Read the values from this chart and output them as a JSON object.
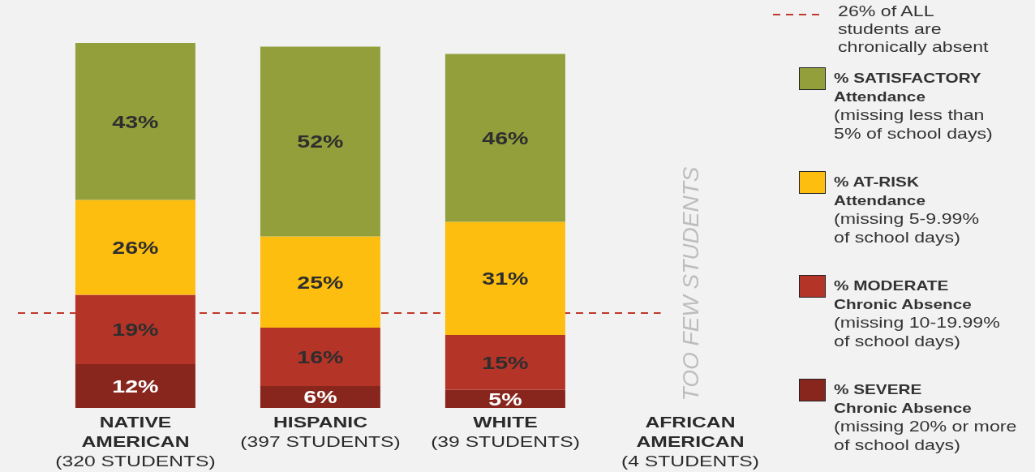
{
  "chart_data": {
    "type": "bar",
    "stacked": true,
    "categories": [
      "NATIVE\nAMERICAN\n(320 STUDENTS)",
      "HISPANIC\n(397 STUDENTS)",
      "WHITE\n(39 STUDENTS)",
      "AFRICAN\nAMERICAN\n(4 STUDENTS)"
    ],
    "series": [
      {
        "name": "% SEVERE\nChronic Absence\n(missing 20% or more\nof school days)",
        "color": "#88261e",
        "values": [
          12,
          6,
          5,
          null
        ],
        "value_labels": [
          "12%",
          "6%",
          "5%",
          null
        ]
      },
      {
        "name": "% MODERATE\nChronic Absence\n(missing 10-19.99%\nof school days)",
        "color": "#b53428",
        "values": [
          19,
          16,
          15,
          null
        ],
        "value_labels": [
          "19%",
          "16%",
          "15%",
          null
        ]
      },
      {
        "name": "% AT-RISK\nAttendance\n(missing 5-9.99%\nof school days)",
        "color": "#fdbe10",
        "values": [
          26,
          25,
          31,
          null
        ],
        "value_labels": [
          "26%",
          "25%",
          "31%",
          null
        ]
      },
      {
        "name": "% SATISFACTORY\nAttendance\n(missing less than\n5% of school days)",
        "color": "#939f3b",
        "values": [
          43,
          52,
          46,
          null
        ],
        "value_labels": [
          "43%",
          "52%",
          "46%",
          null
        ]
      }
    ],
    "ylim": [
      0,
      100
    ],
    "tick_labels": "x",
    "legend": "right",
    "ref_lines": [
      {
        "axis": "y",
        "value": 26,
        "label": "26% of ALL\nstudents are\nchronically absent",
        "color": "#c0392b",
        "line_style": "dashed"
      }
    ],
    "annotations": [
      "TOO FEW STUDENTS"
    ]
  }
}
